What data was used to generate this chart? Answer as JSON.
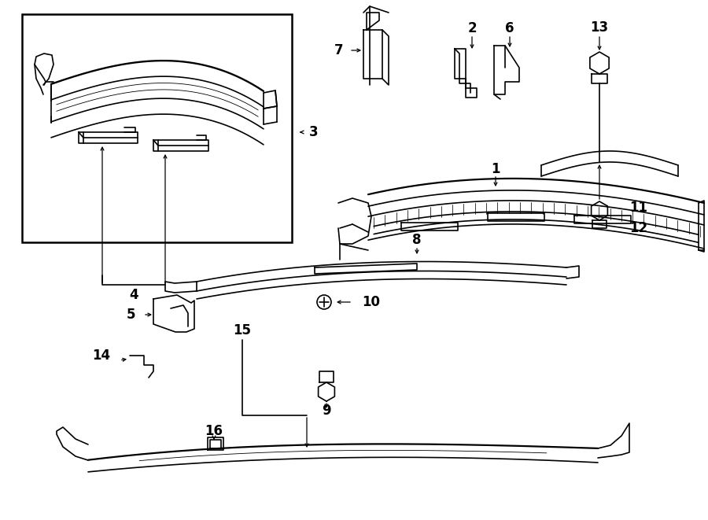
{
  "bg_color": "#ffffff",
  "line_color": "#000000",
  "fig_width": 9.0,
  "fig_height": 6.61,
  "dpi": 100,
  "lw": 1.2
}
